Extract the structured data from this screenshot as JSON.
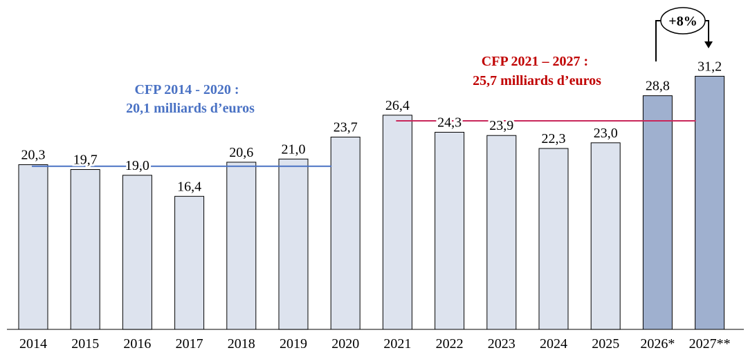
{
  "chart_data": {
    "type": "bar",
    "categories": [
      "2014",
      "2015",
      "2016",
      "2017",
      "2018",
      "2019",
      "2020",
      "2021",
      "2022",
      "2023",
      "2024",
      "2025",
      "2026*",
      "2027**"
    ],
    "values": [
      20.3,
      19.7,
      19.0,
      16.4,
      20.6,
      21.0,
      23.7,
      26.4,
      24.3,
      23.9,
      22.3,
      23.0,
      28.8,
      31.2
    ],
    "value_labels": [
      "20,3",
      "19,7",
      "19,0",
      "16,4",
      "20,6",
      "21,0",
      "23,7",
      "26,4",
      "24,3",
      "23,9",
      "22,3",
      "23,0",
      "28,8",
      "31,2"
    ],
    "highlighted": [
      false,
      false,
      false,
      false,
      false,
      false,
      false,
      false,
      false,
      false,
      false,
      false,
      true,
      true
    ],
    "ylim": [
      0,
      35
    ],
    "grid": false,
    "title": "",
    "xlabel": "",
    "ylabel": "",
    "reference_lines": [
      {
        "label_line1": "CFP 2014 - 2020 :",
        "label_line2": "20,1 milliards d’euros",
        "value": 20.1,
        "from_index": 0,
        "to_index": 6,
        "color": "#4a72c4"
      },
      {
        "label_line1": "CFP 2021 – 2027 :",
        "label_line2": "25,7 milliards d’euros",
        "value": 25.7,
        "from_index": 7,
        "to_index": 13,
        "color": "#c00000"
      }
    ],
    "growth_annotation": {
      "label": "+8%",
      "from_index": 12,
      "to_index": 13
    },
    "colors": {
      "bar_light": "#dde3ee",
      "bar_dark": "#9fb0cf",
      "blue_line": "#4a72c4",
      "red_line": "#c8265a"
    }
  }
}
